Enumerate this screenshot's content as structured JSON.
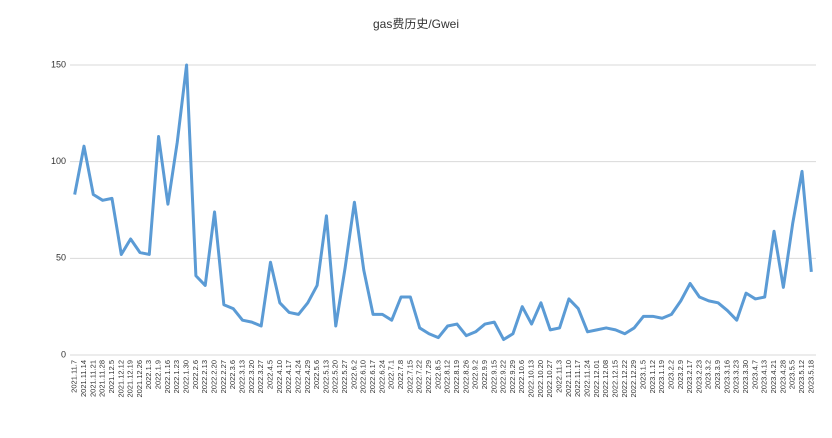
{
  "chart_data": {
    "type": "line",
    "title": "gas费历史/Gwei",
    "categories": [
      "2021.11.7",
      "2021.11.14",
      "2021.11.21",
      "2021.11.28",
      "2021.12.5",
      "2021.12.12",
      "2021.12.19",
      "2021.12.26",
      "2022.1.3",
      "2022.1.9",
      "2022.1.16",
      "2022.1.23",
      "2022.1.30",
      "2022.2.6",
      "2022.2.13",
      "2022.2.20",
      "2022.2.27",
      "2022.3.6",
      "2022.3.13",
      "2022.3.20",
      "2022.3.27",
      "2022.4.5",
      "2022.4.10",
      "2022.4.17",
      "2022.4.24",
      "2022.4.29",
      "2022.5.6",
      "2022.5.13",
      "2022.5.20",
      "2022.5.27",
      "2022.6.2",
      "2022.6.10",
      "2022.6.17",
      "2022.6.24",
      "2022.7.1",
      "2022.7.8",
      "2022.7.15",
      "2022.7.22",
      "2022.7.29",
      "2022.8.5",
      "2022.8.12",
      "2022.8.19",
      "2022.8.26",
      "2022.9.2",
      "2022.9.9",
      "2022.9.15",
      "2022.9.22",
      "2022.9.29",
      "2022.10.6",
      "2022.10.13",
      "2022.10.20",
      "2022.10.27",
      "2022.11.3",
      "2022.11.10",
      "2022.11.17",
      "2022.11.24",
      "2022.12.01",
      "2022.12.08",
      "2022.12.15",
      "2022.12.22",
      "2022.12.29",
      "2023.1.5",
      "2023.1.12",
      "2023.1.19",
      "2023.2.2",
      "2023.2.9",
      "2023.2.17",
      "2023.2.23",
      "2023.3.2",
      "2023.3.9",
      "2023.3.16",
      "2023.3.23",
      "2023.3.30",
      "2023.4.7",
      "2023.4.13",
      "2023.4.21",
      "2023.4.28",
      "2023.5.5",
      "2023.5.12",
      "2023.5.18"
    ],
    "series": [
      {
        "name": "gas",
        "color": "#5b9bd5",
        "values": [
          83,
          108,
          83,
          80,
          81,
          52,
          60,
          53,
          52,
          113,
          78,
          110,
          150,
          41,
          36,
          74,
          26,
          24,
          18,
          17,
          15,
          48,
          27,
          22,
          21,
          27,
          36,
          72,
          15,
          45,
          79,
          44,
          21,
          21,
          18,
          30,
          30,
          14,
          11,
          9,
          15,
          16,
          10,
          12,
          16,
          17,
          8,
          11,
          25,
          16,
          27,
          13,
          14,
          29,
          24,
          12,
          13,
          14,
          13,
          11,
          14,
          20,
          20,
          19,
          21,
          28,
          37,
          30,
          28,
          27,
          23,
          18,
          32,
          29,
          30,
          64,
          35,
          68,
          95,
          43
        ]
      }
    ],
    "ylim": [
      0,
      150
    ],
    "yticks": [
      0,
      50,
      100,
      150
    ],
    "grid": true
  }
}
